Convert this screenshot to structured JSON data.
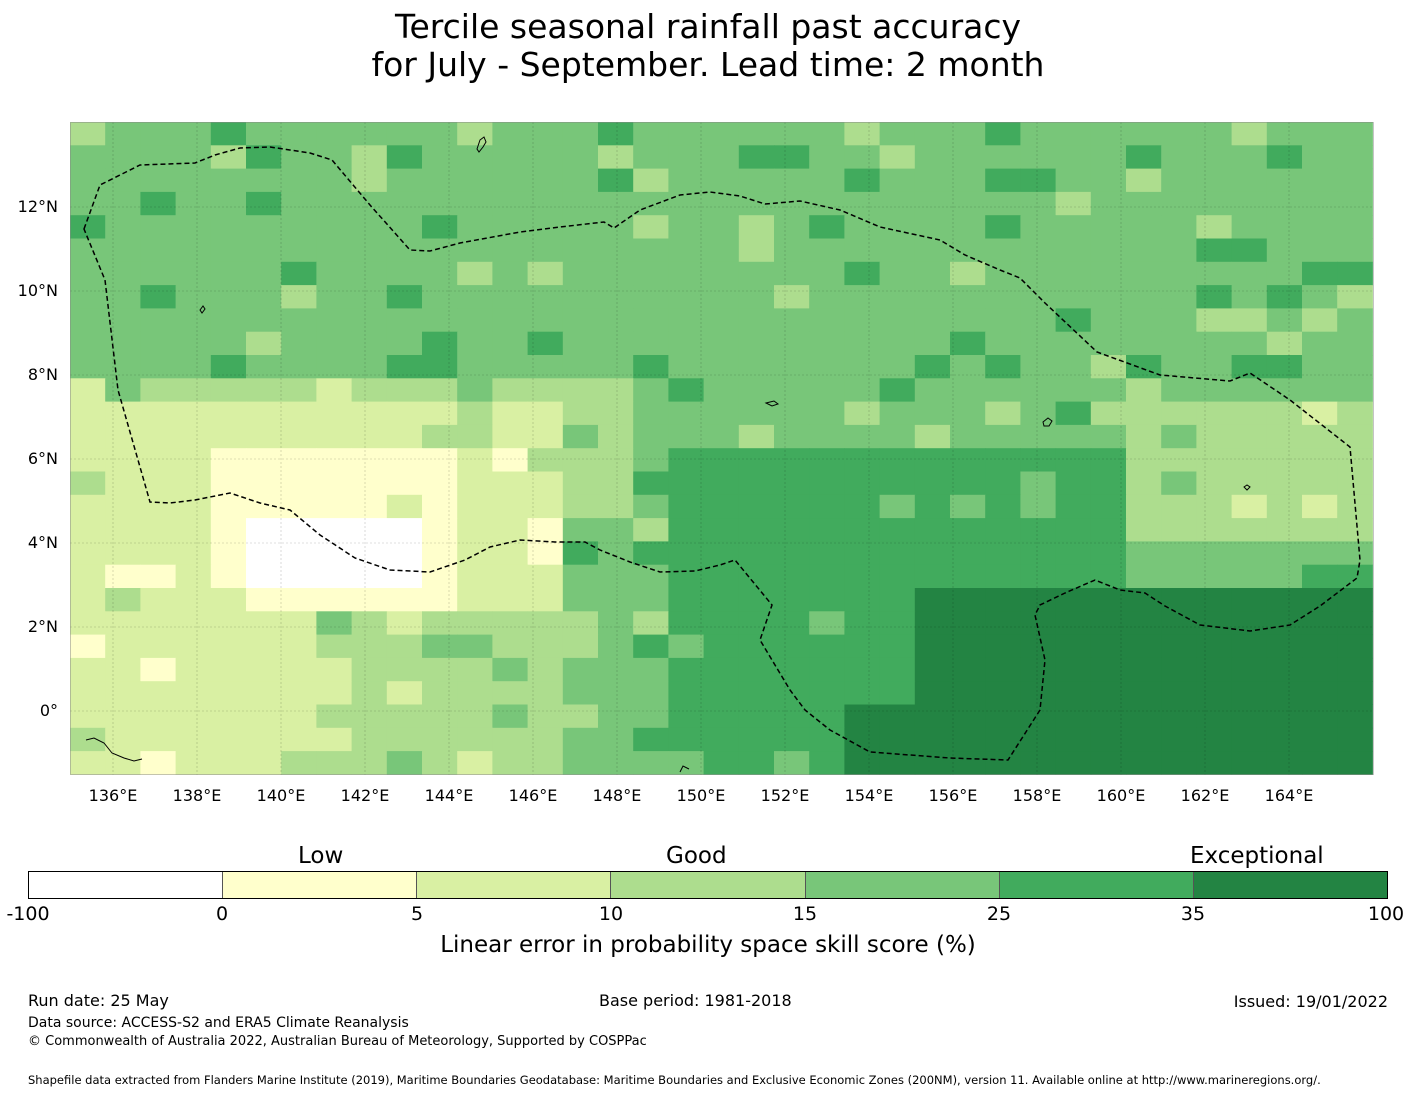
{
  "title_line1": "Tercile seasonal rainfall past accuracy",
  "title_line2": "for July - September. Lead time: 2 month",
  "map": {
    "lat_labels": [
      "12°N",
      "10°N",
      "8°N",
      "6°N",
      "4°N",
      "2°N",
      "0°"
    ],
    "lon_labels": [
      "136°E",
      "138°E",
      "140°E",
      "142°E",
      "144°E",
      "146°E",
      "148°E",
      "150°E",
      "152°E",
      "154°E",
      "156°E",
      "158°E",
      "160°E",
      "162°E",
      "164°E"
    ]
  },
  "colorbar": {
    "category_labels": [
      "Low",
      "Good",
      "Exceptional"
    ],
    "ticks": [
      "-100",
      "0",
      "5",
      "10",
      "15",
      "25",
      "35",
      "100"
    ],
    "colors": [
      "#ffffff",
      "#ffffcc",
      "#d9f0a3",
      "#addd8e",
      "#78c679",
      "#41ab5d",
      "#238443"
    ],
    "title": "Linear error in probability space skill score (%)"
  },
  "footer": {
    "run_date": "Run date: 25 May",
    "base_period": "Base period: 1981-2018",
    "issued": "Issued: 19/01/2022",
    "data_source": "Data source: ACCESS-S2 and ERA5 Climate Reanalysis",
    "copyright": "© Commonwealth of Australia 2022, Australian Bureau of Meteorology, Supported by COSPPac",
    "shapefile": "Shapefile data extracted from Flanders Marine Institute (2019), Maritime Boundaries Geodatabase: Maritime Boundaries and Exclusive Economic Zones (200NM), version 11. Available online at http://www.marineregions.org/."
  }
}
